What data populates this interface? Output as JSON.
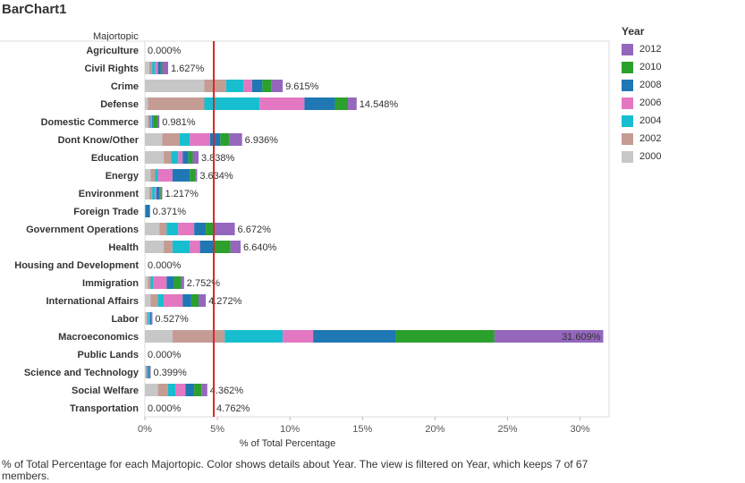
{
  "title": "BarChart1",
  "caption": "% of Total Percentage for each Majortopic.  Color shows details about Year. The view is filtered on Year, which keeps 7 of 67 members.",
  "legend_title": "Year",
  "reference_line_color": "#d62728",
  "chart_data": {
    "type": "bar",
    "orientation": "horizontal",
    "stacked": true,
    "row_header": "Majortopic",
    "xlabel": "% of Total Percentage",
    "xlim": [
      0,
      32
    ],
    "xticks": [
      0,
      5,
      10,
      15,
      20,
      25,
      30
    ],
    "xtick_labels": [
      "0%",
      "5%",
      "10%",
      "15%",
      "20%",
      "25%",
      "30%"
    ],
    "reference_line_x": 4.75,
    "categories": [
      "Agriculture",
      "Civil Rights",
      "Crime",
      "Defense",
      "Domestic Commerce",
      "Dont Know/Other",
      "Education",
      "Energy",
      "Environment",
      "Foreign Trade",
      "Government Operations",
      "Health",
      "Housing  and  Development",
      "Immigration",
      "International Affairs",
      "Labor",
      "Macroeconomics",
      "Public Lands",
      "Science  and  Technology",
      "Social Welfare",
      "Transportation"
    ],
    "total_labels": [
      "0.000%",
      "1.627%",
      "9.615%",
      "14.548%",
      "0.981%",
      "6.936%",
      "3.838%",
      "3.634%",
      "1.217%",
      "0.371%",
      "6.672%",
      "6.640%",
      "0.000%",
      "2.752%",
      "4.272%",
      "0.527%",
      "31.609%",
      "0.000%",
      "0.399%",
      "4.362%",
      "0.000%"
    ],
    "extra_label": {
      "category": "Transportation",
      "text": "4.762%"
    },
    "series": [
      {
        "name": "2000",
        "color": "#c7c7c7",
        "values": [
          0,
          0.3,
          4.1,
          0.2,
          0.2,
          1.2,
          1.3,
          0.4,
          0.3,
          0,
          1.0,
          1.3,
          0,
          0.2,
          0.4,
          0.1,
          1.9,
          0,
          0.05,
          0.9,
          0
        ]
      },
      {
        "name": "2002",
        "color": "#c49c94",
        "values": [
          0,
          0.2,
          1.5,
          3.9,
          0.1,
          1.2,
          0.5,
          0.3,
          0.2,
          0,
          0.5,
          0.6,
          0,
          0.2,
          0.5,
          0.1,
          3.6,
          0,
          0.05,
          0.7,
          0
        ]
      },
      {
        "name": "2004",
        "color": "#17becf",
        "values": [
          0,
          0.2,
          1.2,
          3.8,
          0.1,
          0.7,
          0.5,
          0.2,
          0.2,
          0.05,
          0.8,
          1.2,
          0,
          0.2,
          0.4,
          0.1,
          4.0,
          0,
          0.05,
          0.5,
          0
        ]
      },
      {
        "name": "2006",
        "color": "#e377c2",
        "values": [
          0,
          0.2,
          0.6,
          3.1,
          0.1,
          1.4,
          0.3,
          1.0,
          0.1,
          0,
          1.1,
          0.7,
          0,
          0.9,
          1.3,
          0.05,
          2.1,
          0,
          0.05,
          0.7,
          0
        ]
      },
      {
        "name": "2008",
        "color": "#1f77b4",
        "values": [
          0,
          0.2,
          0.7,
          2.1,
          0.1,
          0.7,
          0.4,
          1.2,
          0.2,
          0.3,
          0.8,
          0.9,
          0,
          0.5,
          0.6,
          0.1,
          5.7,
          0,
          0.1,
          0.6,
          0
        ]
      },
      {
        "name": "2010",
        "color": "#2ca02c",
        "values": [
          0,
          0.1,
          0.6,
          0.9,
          0.3,
          0.6,
          0.3,
          0.4,
          0.1,
          0,
          0.6,
          1.2,
          0,
          0.5,
          0.5,
          0.02,
          6.8,
          0,
          0.05,
          0.5,
          0
        ]
      },
      {
        "name": "2012",
        "color": "#9467bd",
        "values": [
          0,
          0.4,
          0.8,
          0.6,
          0.1,
          0.9,
          0.4,
          0.1,
          0.1,
          0,
          1.4,
          0.7,
          0,
          0.2,
          0.5,
          0.05,
          7.5,
          0,
          0.05,
          0.4,
          0
        ]
      }
    ],
    "legend_order": [
      "2012",
      "2010",
      "2008",
      "2006",
      "2004",
      "2002",
      "2000"
    ],
    "legend_position": "right"
  }
}
